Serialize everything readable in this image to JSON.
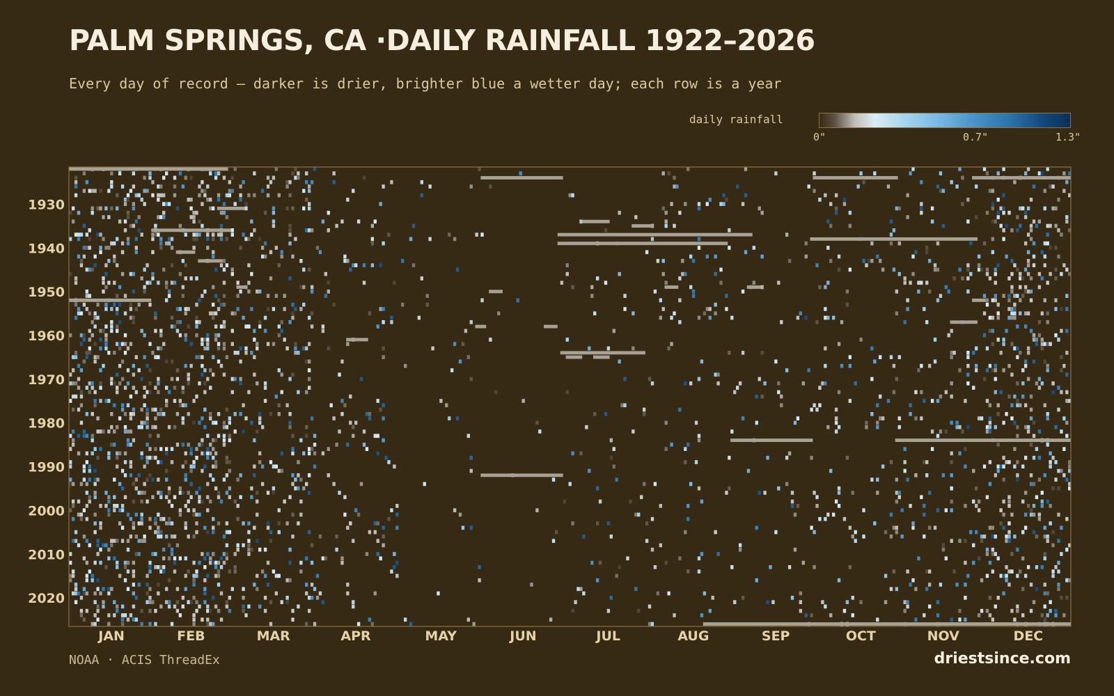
{
  "colors": {
    "background": "#372a14",
    "dry": "#372a14",
    "trace": "#bfbdb8",
    "wet_low": "#a6d4ee",
    "wet_mid": "#4e97cc",
    "wet_high": "#12467a",
    "missing": "#a8a294",
    "frame": "#8a7440"
  },
  "chart_data": {
    "type": "heatmap",
    "title": "PALM SPRINGS, CA ·DAILY RAINFALL 1922–2026",
    "subtitle": "Every day of record — darker is drier, brighter blue a wetter day; each row is a year",
    "x_axis": "day of year",
    "y_axis": "year",
    "year_range": [
      1922,
      2026
    ],
    "day_range": [
      1,
      365
    ],
    "y_tick_labels": [
      "1930",
      "1940",
      "1950",
      "1960",
      "1970",
      "1980",
      "1990",
      "2000",
      "2010",
      "2020"
    ],
    "y_tick_years": [
      1930,
      1940,
      1950,
      1960,
      1970,
      1980,
      1990,
      2000,
      2010,
      2020
    ],
    "x_tick_labels": [
      "JAN",
      "FEB",
      "MAR",
      "APR",
      "MAY",
      "JUN",
      "JUL",
      "AUG",
      "SEP",
      "OCT",
      "NOV",
      "DEC"
    ],
    "x_tick_days": [
      16,
      45,
      75,
      105,
      136,
      166,
      197,
      228,
      258,
      289,
      319,
      350
    ],
    "legend": {
      "label": "daily rainfall",
      "unit": "in",
      "range": [
        0,
        1.3
      ],
      "tick_labels": [
        "0\"",
        "0.7\"",
        "1.3\""
      ],
      "tick_values": [
        0,
        0.7,
        1.3
      ],
      "placement": "top-right"
    },
    "monthly_rain_day_probability": [
      0.16,
      0.15,
      0.1,
      0.04,
      0.015,
      0.006,
      0.02,
      0.035,
      0.025,
      0.035,
      0.06,
      0.13
    ],
    "missing_data_runs": [
      {
        "year": 1922,
        "start_day": 1,
        "end_day": 58
      },
      {
        "year": 1924,
        "start_day": 151,
        "end_day": 180
      },
      {
        "year": 1924,
        "start_day": 272,
        "end_day": 302
      },
      {
        "year": 1924,
        "start_day": 330,
        "end_day": 365
      },
      {
        "year": 1931,
        "start_day": 55,
        "end_day": 64
      },
      {
        "year": 1934,
        "start_day": 188,
        "end_day": 197
      },
      {
        "year": 1935,
        "start_day": 206,
        "end_day": 213
      },
      {
        "year": 1936,
        "start_day": 31,
        "end_day": 59
      },
      {
        "year": 1937,
        "start_day": 179,
        "end_day": 249
      },
      {
        "year": 1938,
        "start_day": 271,
        "end_day": 331
      },
      {
        "year": 1939,
        "start_day": 179,
        "end_day": 240
      },
      {
        "year": 1941,
        "start_day": 40,
        "end_day": 46
      },
      {
        "year": 1943,
        "start_day": 48,
        "end_day": 56
      },
      {
        "year": 1949,
        "start_day": 62,
        "end_day": 65
      },
      {
        "year": 1949,
        "start_day": 218,
        "end_day": 222
      },
      {
        "year": 1949,
        "start_day": 248,
        "end_day": 252
      },
      {
        "year": 1950,
        "start_day": 154,
        "end_day": 158
      },
      {
        "year": 1952,
        "start_day": 1,
        "end_day": 30
      },
      {
        "year": 1952,
        "start_day": 330,
        "end_day": 334
      },
      {
        "year": 1957,
        "start_day": 322,
        "end_day": 331
      },
      {
        "year": 1958,
        "start_day": 149,
        "end_day": 152
      },
      {
        "year": 1958,
        "start_day": 174,
        "end_day": 178
      },
      {
        "year": 1961,
        "start_day": 102,
        "end_day": 109
      },
      {
        "year": 1964,
        "start_day": 180,
        "end_day": 210
      },
      {
        "year": 1965,
        "start_day": 182,
        "end_day": 187
      },
      {
        "year": 1965,
        "start_day": 192,
        "end_day": 197
      },
      {
        "year": 1984,
        "start_day": 242,
        "end_day": 271
      },
      {
        "year": 1984,
        "start_day": 302,
        "end_day": 365
      },
      {
        "year": 1992,
        "start_day": 151,
        "end_day": 180
      },
      {
        "year": 2026,
        "start_day": 232,
        "end_day": 365
      }
    ]
  },
  "footer": {
    "source": "NOAA · ACIS ThreadEx",
    "site": "driestsince.com"
  }
}
